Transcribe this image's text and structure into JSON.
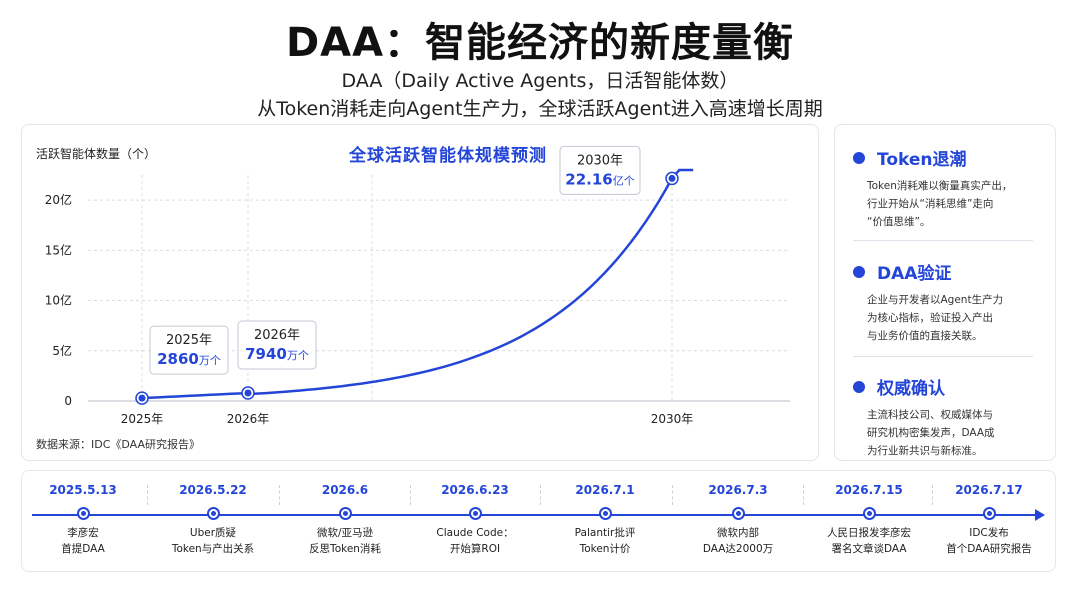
{
  "header": {
    "title": "DAA：智能经济的新度量衡",
    "subtitle_line1": "DAA（Daily Active Agents，日活智能体数）",
    "subtitle_line2": "从Token消耗走向Agent生产力，全球活跃Agent进入高速增长周期"
  },
  "chart_data": {
    "type": "line",
    "title": "全球活跃智能体规模预测",
    "ylabel": "活跃智能体数量（个）",
    "xlabel": "",
    "x": [
      2025,
      2026,
      2030
    ],
    "x_tick_labels": [
      "2025年",
      "2026年",
      "2030年"
    ],
    "y_ticks": [
      0,
      5,
      10,
      15,
      20
    ],
    "y_tick_labels": [
      "0",
      "5亿",
      "10亿",
      "15亿",
      "20亿"
    ],
    "y_unit": "亿",
    "ylim": [
      0,
      22.5
    ],
    "grid": true,
    "series": [
      {
        "values": [
          0.286,
          0.794,
          22.16
        ],
        "color": "#2446d8"
      }
    ],
    "callouts": [
      {
        "year_label": "2025年",
        "value_text": "2860",
        "unit_text": "万个"
      },
      {
        "year_label": "2026年",
        "value_text": "7940",
        "unit_text": "万个"
      },
      {
        "year_label": "2030年",
        "value_text": "22.16",
        "unit_text": "亿个"
      }
    ],
    "source": "数据来源：IDC《DAA研究报告》"
  },
  "side_panel": {
    "items": [
      {
        "title": "Token退潮",
        "lines": [
          "Token消耗难以衡量真实产出，",
          "行业开始从“消耗思维”走向",
          "“价值思维”。"
        ]
      },
      {
        "title": "DAA验证",
        "lines": [
          "企业与开发者以Agent生产力",
          "为核心指标，验证投入产出",
          "与业务价值的直接关联。"
        ]
      },
      {
        "title": "权威确认",
        "lines": [
          "主流科技公司、权威媒体与",
          "研究机构密集发声，DAA成",
          "为行业新共识与新标准。"
        ]
      }
    ]
  },
  "timeline": {
    "events": [
      {
        "date": "2025.5.13",
        "line1": "李彦宏",
        "line2": "首提DAA"
      },
      {
        "date": "2026.5.22",
        "line1": "Uber质疑",
        "line2": "Token与产出关系"
      },
      {
        "date": "2026.6",
        "line1": "微软/亚马逊",
        "line2": "反思Token消耗"
      },
      {
        "date": "2026.6.23",
        "line1": "Claude Code：",
        "line2": "开始算ROI"
      },
      {
        "date": "2026.7.1",
        "line1": "Palantir批评",
        "line2": "Token计价"
      },
      {
        "date": "2026.7.3",
        "line1": "微软内部",
        "line2": "DAA达2000万"
      },
      {
        "date": "2026.7.15",
        "line1": "人民日报发李彦宏",
        "line2": "署名文章谈DAA"
      },
      {
        "date": "2026.7.17",
        "line1": "IDC发布",
        "line2": "首个DAA研究报告"
      }
    ]
  },
  "colors": {
    "accent": "#2446d8",
    "grid": "#d9dce4",
    "text": "#1a1a1a"
  }
}
